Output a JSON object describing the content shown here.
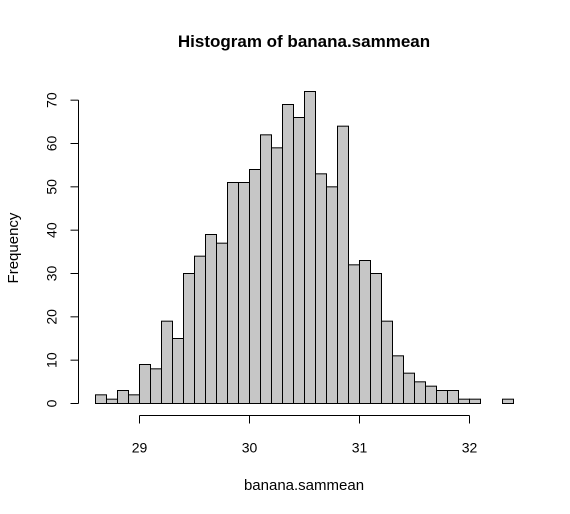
{
  "chart_data": {
    "type": "bar",
    "title": "Histogram of banana.sammean",
    "xlabel": "banana.sammean",
    "ylabel": "Frequency",
    "bin_width": 0.1,
    "bins": [
      {
        "start": 28.6,
        "end": 28.7,
        "count": 2
      },
      {
        "start": 28.7,
        "end": 28.8,
        "count": 1
      },
      {
        "start": 28.8,
        "end": 28.9,
        "count": 3
      },
      {
        "start": 28.9,
        "end": 29.0,
        "count": 2
      },
      {
        "start": 29.0,
        "end": 29.1,
        "count": 9
      },
      {
        "start": 29.1,
        "end": 29.2,
        "count": 8
      },
      {
        "start": 29.2,
        "end": 29.3,
        "count": 19
      },
      {
        "start": 29.3,
        "end": 29.4,
        "count": 15
      },
      {
        "start": 29.4,
        "end": 29.5,
        "count": 30
      },
      {
        "start": 29.5,
        "end": 29.6,
        "count": 34
      },
      {
        "start": 29.6,
        "end": 29.7,
        "count": 39
      },
      {
        "start": 29.7,
        "end": 29.8,
        "count": 37
      },
      {
        "start": 29.8,
        "end": 29.9,
        "count": 51
      },
      {
        "start": 29.9,
        "end": 30.0,
        "count": 51
      },
      {
        "start": 30.0,
        "end": 30.1,
        "count": 54
      },
      {
        "start": 30.1,
        "end": 30.2,
        "count": 62
      },
      {
        "start": 30.2,
        "end": 30.3,
        "count": 59
      },
      {
        "start": 30.3,
        "end": 30.4,
        "count": 69
      },
      {
        "start": 30.4,
        "end": 30.5,
        "count": 66
      },
      {
        "start": 30.5,
        "end": 30.6,
        "count": 72
      },
      {
        "start": 30.6,
        "end": 30.7,
        "count": 53
      },
      {
        "start": 30.7,
        "end": 30.8,
        "count": 50
      },
      {
        "start": 30.8,
        "end": 30.9,
        "count": 64
      },
      {
        "start": 30.9,
        "end": 31.0,
        "count": 32
      },
      {
        "start": 31.0,
        "end": 31.1,
        "count": 33
      },
      {
        "start": 31.1,
        "end": 31.2,
        "count": 30
      },
      {
        "start": 31.2,
        "end": 31.3,
        "count": 19
      },
      {
        "start": 31.3,
        "end": 31.4,
        "count": 11
      },
      {
        "start": 31.4,
        "end": 31.5,
        "count": 7
      },
      {
        "start": 31.5,
        "end": 31.6,
        "count": 5
      },
      {
        "start": 31.6,
        "end": 31.7,
        "count": 4
      },
      {
        "start": 31.7,
        "end": 31.8,
        "count": 3
      },
      {
        "start": 31.8,
        "end": 31.9,
        "count": 3
      },
      {
        "start": 31.9,
        "end": 32.0,
        "count": 1
      },
      {
        "start": 32.0,
        "end": 32.1,
        "count": 1
      },
      {
        "start": 32.1,
        "end": 32.2,
        "count": 0
      },
      {
        "start": 32.2,
        "end": 32.3,
        "count": 0
      },
      {
        "start": 32.3,
        "end": 32.4,
        "count": 1
      }
    ],
    "xlim": [
      28.6,
      32.4
    ],
    "ylim": [
      0,
      72
    ],
    "x_ticks": [
      29,
      30,
      31,
      32
    ],
    "x_tick_labels": [
      "29",
      "30",
      "31",
      "32"
    ],
    "y_ticks": [
      0,
      10,
      20,
      30,
      40,
      50,
      60,
      70
    ],
    "y_tick_labels": [
      "0",
      "10",
      "20",
      "30",
      "40",
      "50",
      "60",
      "70"
    ],
    "grid": false,
    "legend": "none",
    "bar_fill": "#c6c6c6",
    "bar_stroke": "#000000"
  }
}
